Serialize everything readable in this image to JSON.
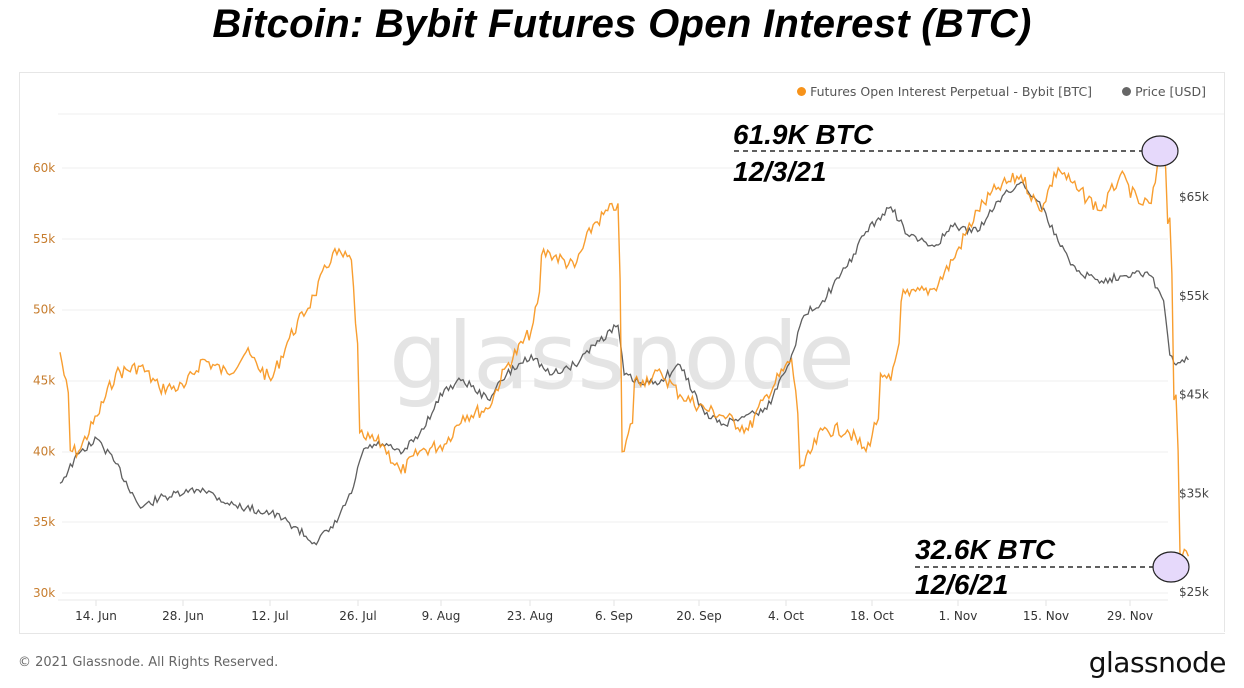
{
  "title": "Bitcoin: Bybit Futures Open Interest (BTC)",
  "legend": {
    "oi_label": "Futures Open Interest Perpetual - Bybit [BTC]",
    "price_label": "Price [USD]",
    "oi_color": "#f7931a",
    "price_color": "#5f5f5f"
  },
  "watermark": "glassnode",
  "annotations": {
    "high_value": "61.9K BTC",
    "high_date": "12/3/21",
    "low_value": "32.6K BTC",
    "low_date": "12/6/21"
  },
  "footer": {
    "copyright": "© 2021 Glassnode. All Rights Reserved.",
    "logo": "glassnode"
  },
  "chart_data": {
    "type": "line",
    "title": "Bitcoin: Bybit Futures Open Interest (BTC)",
    "xlabel": "",
    "ylabel_left": "Futures Open Interest Perpetual - Bybit [BTC]",
    "ylabel_right": "Price [USD]",
    "x_tick_labels": [
      "14. Jun",
      "28. Jun",
      "12. Jul",
      "26. Jul",
      "9. Aug",
      "23. Aug",
      "6. Sep",
      "20. Sep",
      "4. Oct",
      "18. Oct",
      "1. Nov",
      "15. Nov",
      "29. Nov"
    ],
    "y_left_tick_labels": [
      "30k",
      "35k",
      "40k",
      "45k",
      "50k",
      "55k",
      "60k"
    ],
    "y_left_range": [
      30000,
      63000
    ],
    "y_right_tick_labels": [
      "$25k",
      "$35k",
      "$45k",
      "$55k",
      "$65k"
    ],
    "y_right_range": [
      25000,
      67000
    ],
    "grid": true,
    "legend_position": "top-right",
    "x": [
      "2021-06-08",
      "2021-06-11",
      "2021-06-14",
      "2021-06-17",
      "2021-06-21",
      "2021-06-24",
      "2021-06-28",
      "2021-07-01",
      "2021-07-05",
      "2021-07-08",
      "2021-07-12",
      "2021-07-15",
      "2021-07-19",
      "2021-07-22",
      "2021-07-25",
      "2021-07-27",
      "2021-07-30",
      "2021-08-02",
      "2021-08-05",
      "2021-08-09",
      "2021-08-12",
      "2021-08-16",
      "2021-08-19",
      "2021-08-23",
      "2021-08-26",
      "2021-08-30",
      "2021-09-02",
      "2021-09-06",
      "2021-09-07",
      "2021-09-10",
      "2021-09-13",
      "2021-09-16",
      "2021-09-20",
      "2021-09-23",
      "2021-09-27",
      "2021-09-30",
      "2021-10-04",
      "2021-10-06",
      "2021-10-09",
      "2021-10-13",
      "2021-10-16",
      "2021-10-20",
      "2021-10-23",
      "2021-10-27",
      "2021-10-30",
      "2021-11-03",
      "2021-11-06",
      "2021-11-10",
      "2021-11-13",
      "2021-11-16",
      "2021-11-19",
      "2021-11-23",
      "2021-11-26",
      "2021-11-29",
      "2021-12-01",
      "2021-12-03",
      "2021-12-04",
      "2021-12-05",
      "2021-12-06",
      "2021-12-07"
    ],
    "series": [
      {
        "name": "Futures Open Interest Perpetual - Bybit [BTC]",
        "axis": "left",
        "color": "#f7931a",
        "values": [
          47000,
          40000,
          42500,
          45500,
          46000,
          44500,
          44500,
          46500,
          45500,
          47000,
          45000,
          48000,
          51000,
          54000,
          53500,
          41000,
          40500,
          38500,
          40000,
          40500,
          42500,
          43000,
          46000,
          48500,
          54000,
          53000,
          56000,
          57500,
          40000,
          45000,
          45500,
          44000,
          43000,
          42500,
          41500,
          44000,
          46500,
          39000,
          41500,
          41500,
          40000,
          45000,
          51000,
          51500,
          53500,
          57000,
          58500,
          59500,
          57000,
          60000,
          58500,
          57000,
          59500,
          57500,
          57500,
          61900,
          56500,
          44000,
          32600,
          32600
        ]
      },
      {
        "name": "Price [USD]",
        "axis": "right",
        "color": "#5f5f5f",
        "values": [
          36000,
          39000,
          40500,
          38000,
          33500,
          34500,
          35000,
          35500,
          34000,
          33500,
          33000,
          32000,
          30000,
          31500,
          35000,
          39500,
          40000,
          39000,
          41000,
          45500,
          46500,
          44500,
          47000,
          49000,
          47000,
          48000,
          50000,
          52000,
          47000,
          46000,
          46500,
          48000,
          43000,
          42000,
          43000,
          43500,
          49000,
          53000,
          54500,
          58000,
          61500,
          64000,
          61000,
          60000,
          62000,
          61500,
          64500,
          66500,
          64500,
          60500,
          57500,
          56500,
          57000,
          57500,
          57000,
          54500,
          49000,
          48000,
          48500,
          48500
        ]
      }
    ]
  }
}
